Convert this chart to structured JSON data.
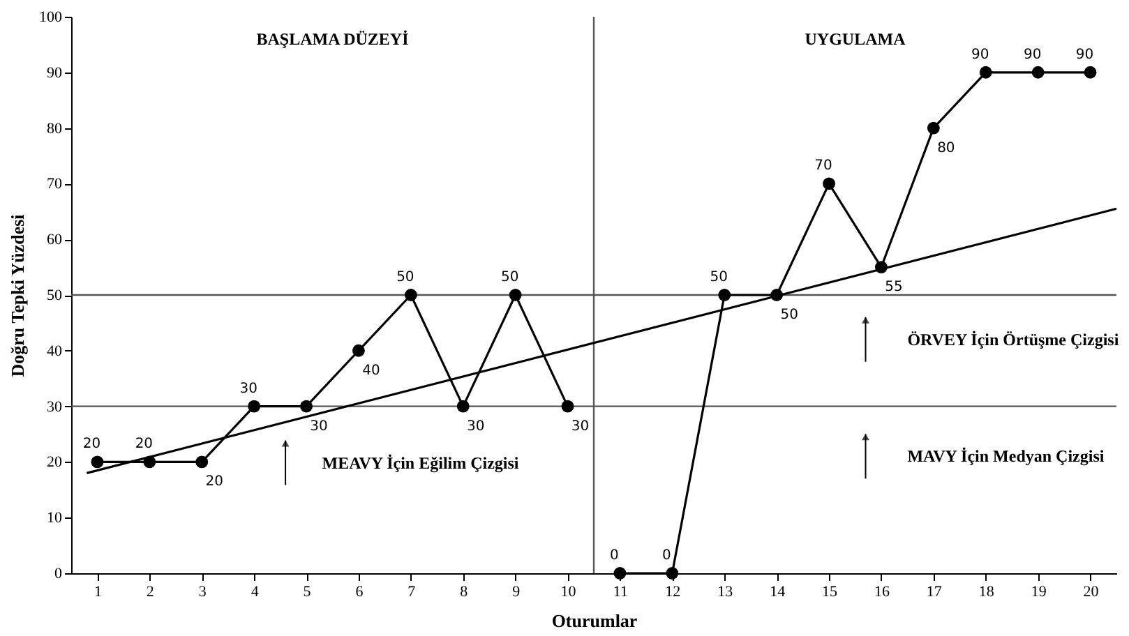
{
  "chart_data": {
    "type": "line",
    "xlabel": "Oturumlar",
    "ylabel": "Doğru Tepki Yüzdesi",
    "annotations": [
      "BAŞLAMA DÜZEYİ",
      "UYGULAMA"
    ],
    "series": [
      {
        "color": "#000000",
        "x": [
          1,
          2,
          3,
          4,
          5,
          6,
          7,
          8,
          9,
          10
        ],
        "values": [
          20,
          20,
          20,
          30,
          30,
          40,
          50,
          30,
          50,
          30
        ]
      },
      {
        "color": "#000000",
        "x": [
          11,
          12,
          13,
          14,
          15,
          16,
          17,
          18,
          19,
          20
        ],
        "values": [
          0,
          0,
          50,
          50,
          70,
          55,
          80,
          90,
          90,
          90
        ]
      },
      {
        "name": "MEAVY İçin Eğilim Çizgisi",
        "color": "#000000",
        "x": [
          0.8,
          20.5
        ],
        "values": [
          18,
          65.5
        ],
        "marker": "none",
        "data_labels": false
      }
    ],
    "ref_lines": [
      {
        "axis": "x",
        "value": 10.5
      },
      {
        "axis": "y",
        "value": 50,
        "label": "ÖRVEY İçin Örtüşme Çizgisi"
      },
      {
        "axis": "y",
        "value": 30,
        "label": "MAVY İçin Medyan Çizgisi"
      }
    ],
    "xlim": [
      0.5,
      20.5
    ],
    "xticks": [
      1,
      2,
      3,
      4,
      5,
      6,
      7,
      8,
      9,
      10,
      11,
      12,
      13,
      14,
      15,
      16,
      17,
      18,
      19,
      20
    ],
    "ylim": [
      0,
      100
    ],
    "yticks": [
      0,
      10,
      20,
      30,
      40,
      50,
      60,
      70,
      80,
      90,
      100
    ],
    "grid": false,
    "legend": false,
    "marker": "circle",
    "line_style": "solid",
    "data_labels": true
  }
}
